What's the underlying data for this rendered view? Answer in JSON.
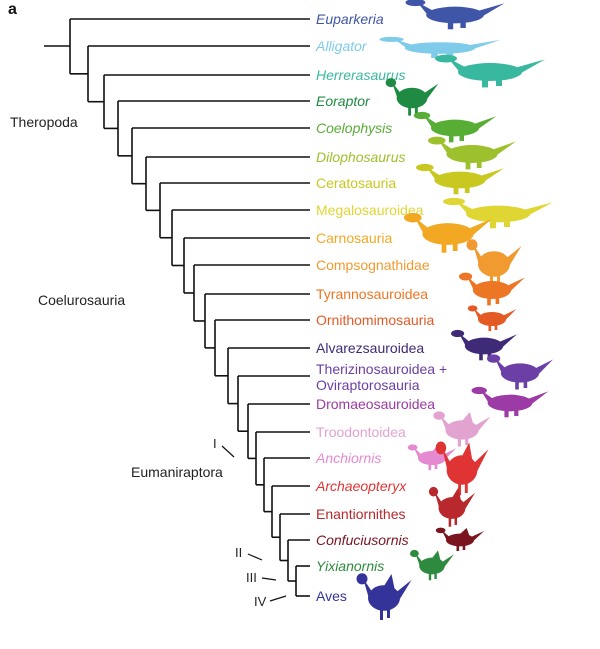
{
  "panel_label": "a",
  "clades": {
    "theropoda": "Theropoda",
    "coelurosauria": "Coelurosauria",
    "eumaniraptora": "Eumaniraptora"
  },
  "nodes": {
    "i": "I",
    "ii": "II",
    "iii": "III",
    "iv": "IV"
  },
  "taxa": [
    {
      "name": "Euparkeria",
      "italic": true,
      "color": "#3f55a8",
      "icon": "euparkeria-silhouette-icon"
    },
    {
      "name": "Alligator",
      "italic": true,
      "color": "#7ecbea",
      "icon": "alligator-silhouette-icon"
    },
    {
      "name": "Herrerasaurus",
      "italic": true,
      "color": "#39b8a0",
      "icon": "herrerasaurus-silhouette-icon"
    },
    {
      "name": "Eoraptor",
      "italic": true,
      "color": "#1f8a42",
      "icon": "eoraptor-silhouette-icon"
    },
    {
      "name": "Coelophysis",
      "italic": true,
      "color": "#58ad35",
      "icon": "coelophysis-silhouette-icon"
    },
    {
      "name": "Dilophosaurus",
      "italic": true,
      "color": "#9cc12c",
      "icon": "dilophosaurus-silhouette-icon"
    },
    {
      "name": "Ceratosauria",
      "italic": false,
      "color": "#c8c820",
      "icon": "ceratosauria-silhouette-icon"
    },
    {
      "name": "Megalosauroidea",
      "italic": false,
      "color": "#e0d633",
      "icon": "megalosauroidea-silhouette-icon"
    },
    {
      "name": "Carnosauria",
      "italic": false,
      "color": "#f3a824",
      "icon": "carnosauria-silhouette-icon"
    },
    {
      "name": "Compsognathidae",
      "italic": false,
      "color": "#f09a30",
      "icon": "compsognathidae-silhouette-icon"
    },
    {
      "name": "Tyrannosauroidea",
      "italic": false,
      "color": "#ec7624",
      "icon": "tyrannosauroidea-silhouette-icon"
    },
    {
      "name": "Ornithomimosauria",
      "italic": false,
      "color": "#e45a25",
      "icon": "ornithomimosauria-silhouette-icon"
    },
    {
      "name": "Alvarezsauroidea",
      "italic": false,
      "color": "#3f2a78",
      "icon": "alvarezsauroidea-silhouette-icon"
    },
    {
      "name": "Therizinosauroidea +\nOviraptorosauria",
      "italic": false,
      "color": "#6b3fa6",
      "icon": "therizinosauroidea-silhouette-icon"
    },
    {
      "name": "Dromaeosauroidea",
      "italic": false,
      "color": "#9c3aa6",
      "icon": "dromaeosauroidea-silhouette-icon"
    },
    {
      "name": "Troodontoidea",
      "italic": false,
      "color": "#e3a3d0",
      "icon": "troodontoidea-silhouette-icon"
    },
    {
      "name": "Anchiornis",
      "italic": true,
      "color": "#e58ad0",
      "icon": "anchiornis-silhouette-icon"
    },
    {
      "name": "Archaeopteryx",
      "italic": true,
      "color": "#e03434",
      "icon": "archaeopteryx-silhouette-icon"
    },
    {
      "name": "Enantiornithes",
      "italic": false,
      "color": "#b8282c",
      "icon": "enantiornithes-silhouette-icon"
    },
    {
      "name": "Confuciusornis",
      "italic": true,
      "color": "#7a1520",
      "icon": "confuciusornis-silhouette-icon"
    },
    {
      "name": "Yixianornis",
      "italic": true,
      "color": "#2e8a3e",
      "icon": "yixianornis-silhouette-icon"
    },
    {
      "name": "Aves",
      "italic": false,
      "color": "#33339a",
      "icon": "aves-silhouette-icon"
    }
  ]
}
